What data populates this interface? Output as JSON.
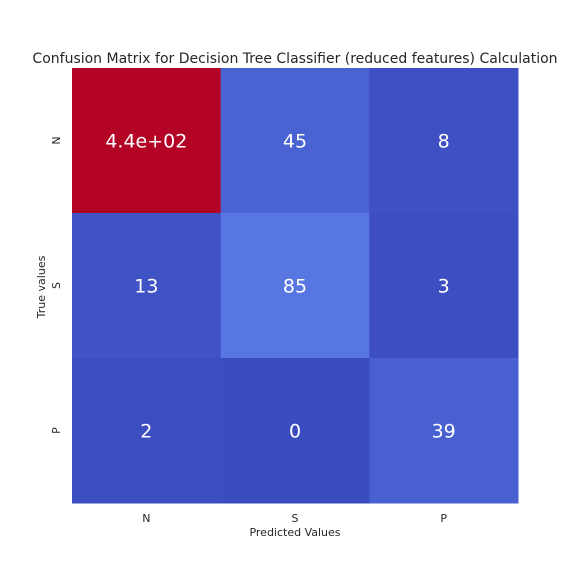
{
  "chart_data": {
    "type": "heatmap",
    "title": "Confusion Matrix for Decision Tree Classifier (reduced features) Calculation",
    "xlabel": "Predicted Values",
    "ylabel": "True values",
    "x_categories": [
      "N",
      "S",
      "P"
    ],
    "y_categories": [
      "N",
      "S",
      "P"
    ],
    "values": [
      [
        440,
        45,
        8
      ],
      [
        13,
        85,
        3
      ],
      [
        2,
        0,
        39
      ]
    ],
    "annotations": [
      [
        "4.4e+02",
        "45",
        "8"
      ],
      [
        "13",
        "85",
        "3"
      ],
      [
        "2",
        "0",
        "39"
      ]
    ],
    "colormap": "coolwarm",
    "colors": {
      "low": "#3b4cc0",
      "mid": "#7b9ff9",
      "high": "#b40426"
    },
    "colorbar": false,
    "grid": false
  }
}
